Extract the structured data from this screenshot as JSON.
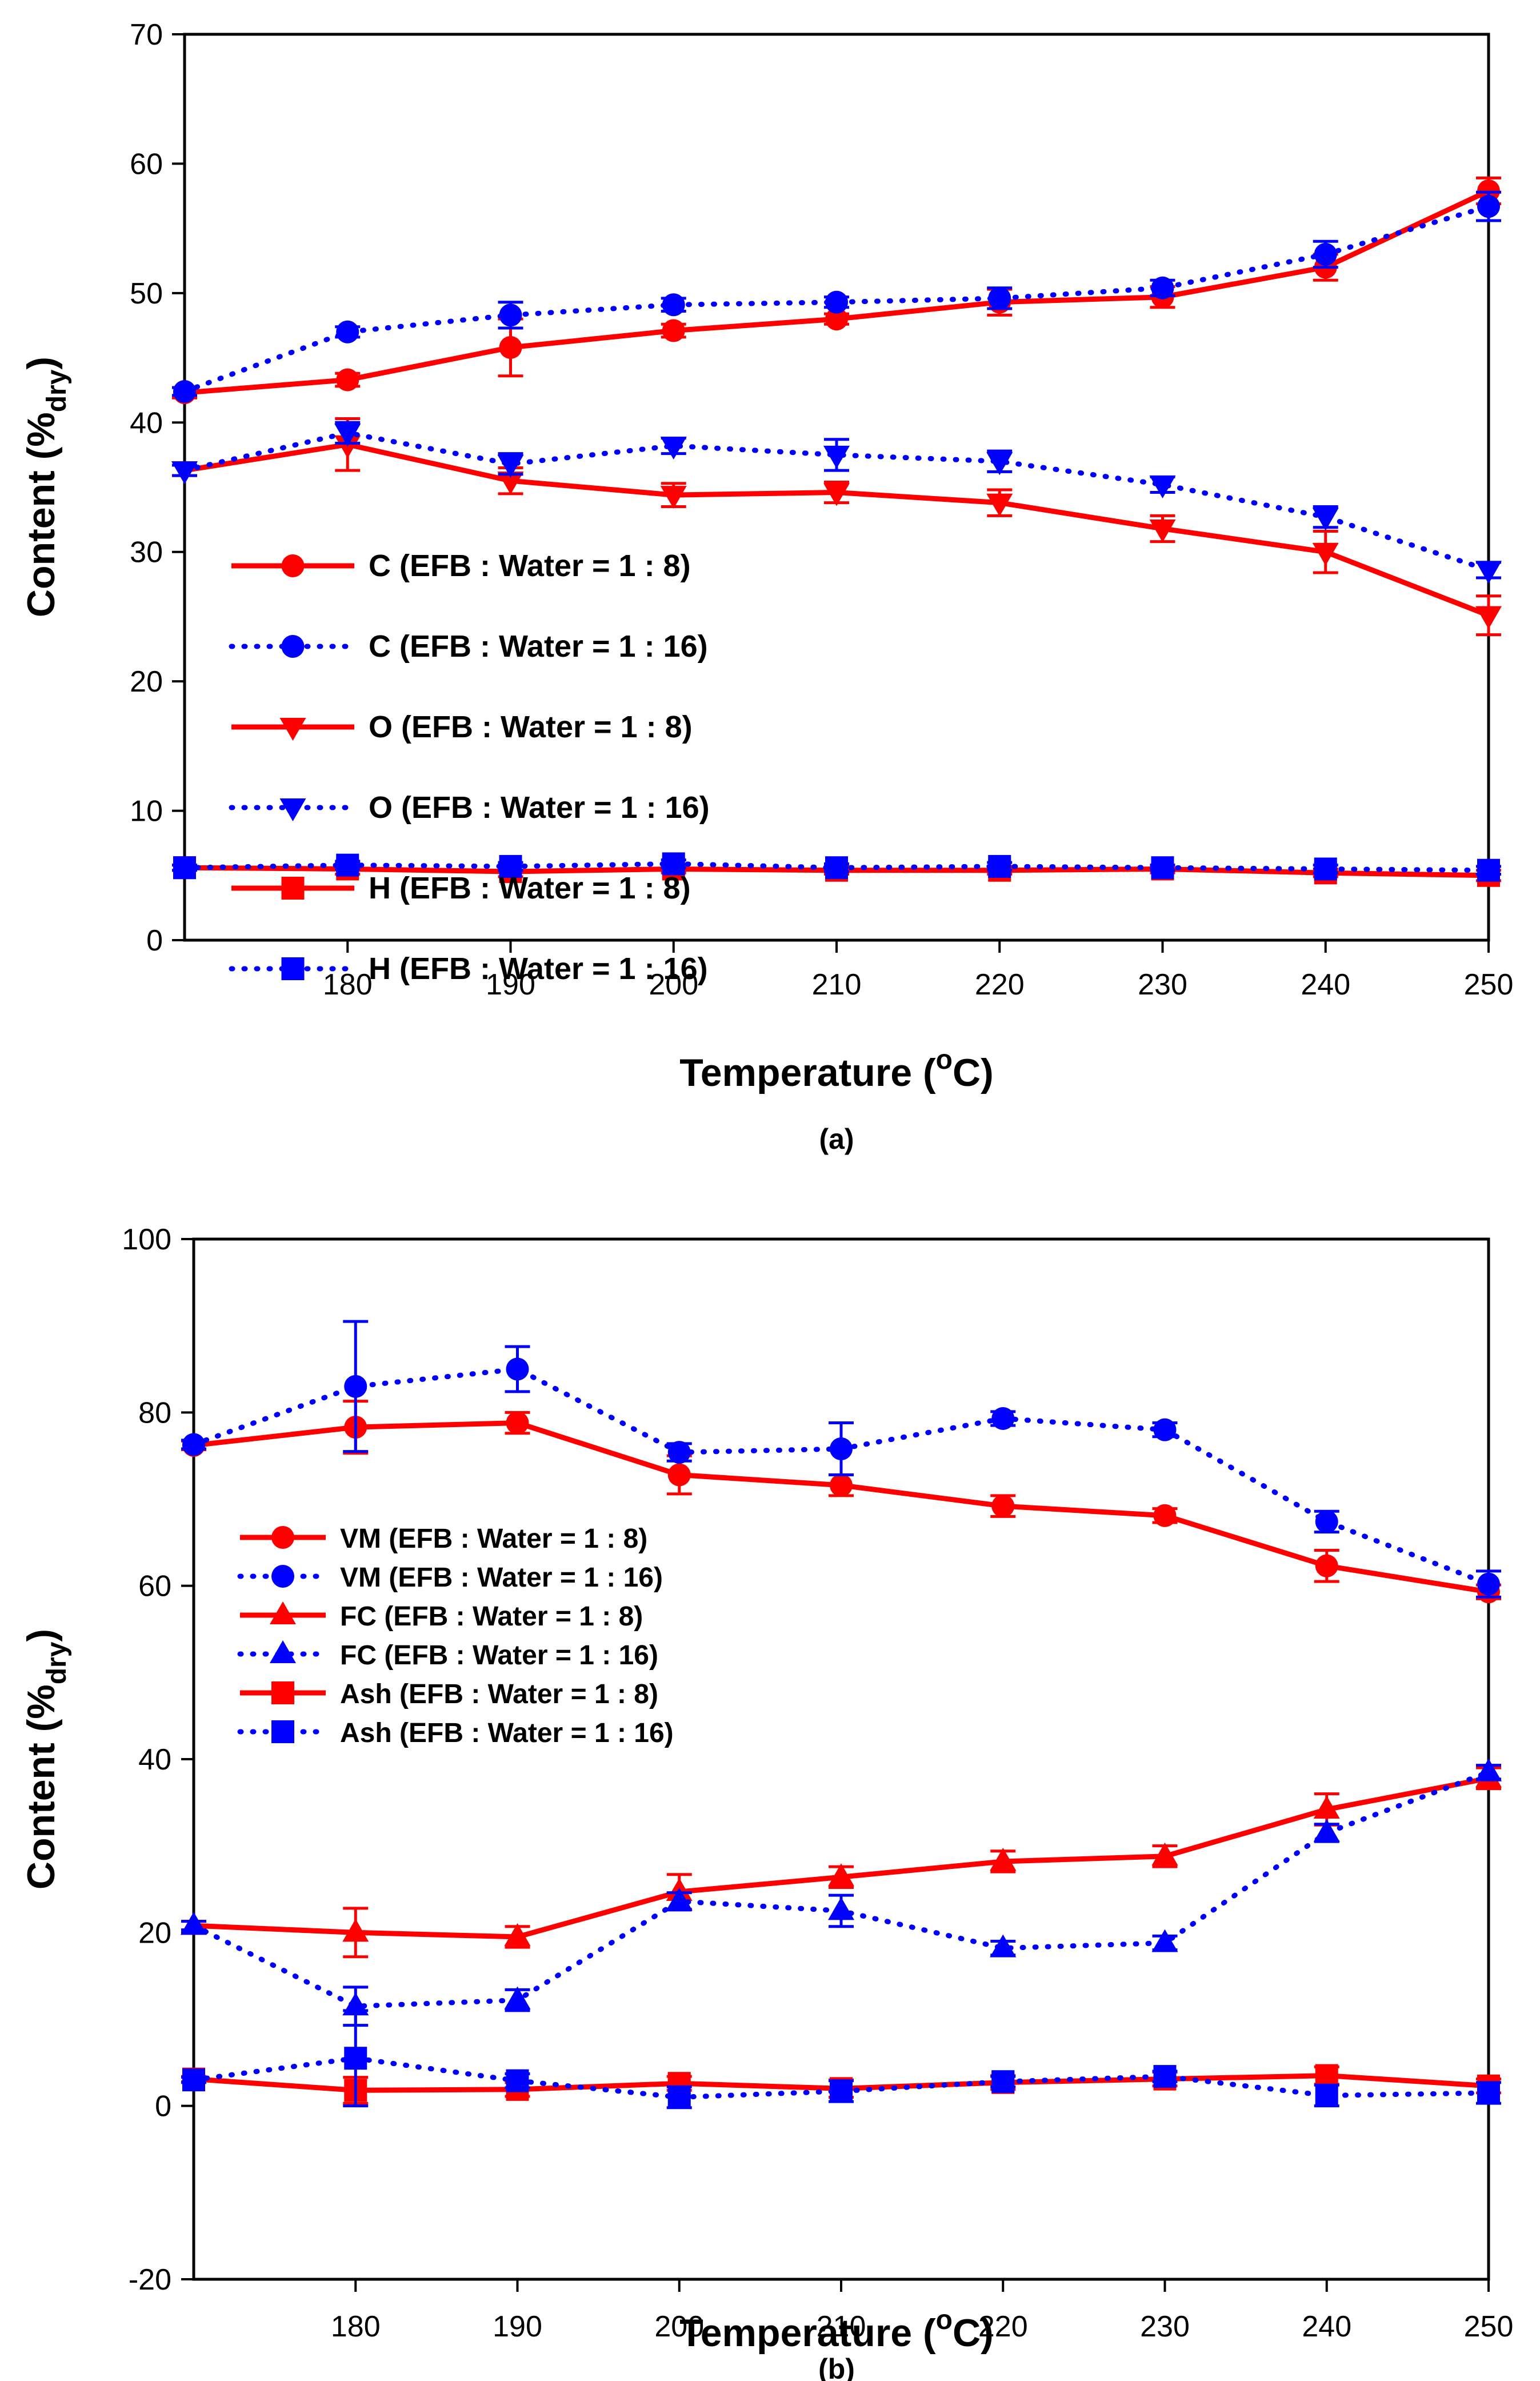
{
  "colors": {
    "red": "#ff0000",
    "blue": "#0000ff",
    "axis": "#000000"
  },
  "chart_data": [
    {
      "id": "a",
      "type": "line",
      "caption": "(a)",
      "xlabel": "Temperature (",
      "xlabel_sup": "o",
      "xlabel_end": "C)",
      "ylabel": "Content (%",
      "ylabel_sub": "dry",
      "ylabel_end": ")",
      "xlim": [
        170,
        250
      ],
      "ylim": [
        0,
        70
      ],
      "x_ticks": [
        180,
        190,
        200,
        210,
        220,
        230,
        240,
        250
      ],
      "y_ticks": [
        0,
        10,
        20,
        30,
        40,
        50,
        60,
        70
      ],
      "x": [
        170,
        180,
        190,
        200,
        210,
        220,
        230,
        240,
        250
      ],
      "series": [
        {
          "name": "C (EFB : Water = 1 : 8)",
          "color": "red",
          "style": "solid",
          "marker": "circle",
          "values": [
            42.3,
            43.3,
            45.8,
            47.1,
            48.0,
            49.3,
            49.7,
            52.0,
            57.9
          ],
          "errors": [
            0.4,
            0.5,
            2.2,
            0.5,
            0.4,
            1.0,
            0.8,
            1.0,
            1.0
          ]
        },
        {
          "name": "C (EFB : Water = 1 : 16)",
          "color": "blue",
          "style": "dotted",
          "marker": "circle",
          "values": [
            42.4,
            47.0,
            48.3,
            49.1,
            49.3,
            49.6,
            50.4,
            53.0,
            56.7
          ],
          "errors": [
            0.3,
            0.4,
            1.0,
            0.5,
            0.4,
            0.8,
            0.6,
            1.0,
            1.1
          ]
        },
        {
          "name": "O (EFB : Water = 1 : 8)",
          "color": "red",
          "style": "solid",
          "marker": "triangle-down",
          "values": [
            36.3,
            38.3,
            35.5,
            34.4,
            34.6,
            33.8,
            31.8,
            30.0,
            25.1
          ],
          "errors": [
            0.4,
            2.0,
            1.0,
            0.9,
            0.8,
            1.0,
            1.0,
            1.6,
            1.5
          ]
        },
        {
          "name": "O (EFB : Water = 1 : 16)",
          "color": "blue",
          "style": "dotted",
          "marker": "triangle-down",
          "values": [
            36.3,
            39.2,
            36.8,
            38.2,
            37.5,
            37.0,
            35.2,
            32.7,
            28.6
          ],
          "errors": [
            0.4,
            0.8,
            0.8,
            0.6,
            1.2,
            0.8,
            0.6,
            0.8,
            0.6
          ]
        },
        {
          "name": "H (EFB : Water = 1 : 8)",
          "color": "red",
          "style": "solid",
          "marker": "square",
          "values": [
            5.6,
            5.5,
            5.3,
            5.5,
            5.4,
            5.4,
            5.5,
            5.2,
            5.0
          ],
          "errors": [
            0.2,
            0.4,
            0.4,
            0.3,
            0.3,
            0.3,
            0.3,
            0.3,
            0.4
          ]
        },
        {
          "name": "H (EFB : Water = 1 : 16)",
          "color": "blue",
          "style": "dotted",
          "marker": "square",
          "values": [
            5.6,
            5.8,
            5.7,
            5.9,
            5.6,
            5.7,
            5.6,
            5.5,
            5.4
          ],
          "errors": [
            0.2,
            0.3,
            0.3,
            0.3,
            0.3,
            0.3,
            0.2,
            0.3,
            0.3
          ]
        }
      ]
    },
    {
      "id": "b",
      "type": "line",
      "caption": "(b)",
      "xlabel": "Temperature (",
      "xlabel_sup": "o",
      "xlabel_end": "C)",
      "ylabel": "Content (%",
      "ylabel_sub": "dry",
      "ylabel_end": ")",
      "xlim": [
        170,
        250
      ],
      "ylim": [
        -20,
        100
      ],
      "x_ticks": [
        180,
        190,
        200,
        210,
        220,
        230,
        240,
        250
      ],
      "y_ticks": [
        -20,
        0,
        20,
        40,
        60,
        80,
        100
      ],
      "x": [
        170,
        180,
        190,
        200,
        210,
        220,
        230,
        240,
        250
      ],
      "series": [
        {
          "name": "VM (EFB : Water = 1 : 8)",
          "color": "red",
          "style": "solid",
          "marker": "circle",
          "values": [
            76.2,
            78.3,
            78.8,
            72.8,
            71.6,
            69.2,
            68.1,
            62.3,
            59.3
          ],
          "errors": [
            0.5,
            3.0,
            1.2,
            2.2,
            1.2,
            1.2,
            0.8,
            1.8,
            0.8
          ]
        },
        {
          "name": "VM (EFB : Water = 1 : 16)",
          "color": "blue",
          "style": "dotted",
          "marker": "circle",
          "values": [
            76.3,
            83.0,
            85.0,
            75.4,
            75.8,
            79.3,
            78.0,
            67.4,
            60.2
          ],
          "errors": [
            0.5,
            7.5,
            2.6,
            1.0,
            3.0,
            0.8,
            0.8,
            1.2,
            1.5
          ]
        },
        {
          "name": "FC (EFB : Water = 1 : 8)",
          "color": "red",
          "style": "solid",
          "marker": "triangle-up",
          "values": [
            20.8,
            20.0,
            19.5,
            24.7,
            26.4,
            28.2,
            28.8,
            34.2,
            37.8
          ],
          "errors": [
            0.5,
            2.8,
            1.2,
            2.0,
            1.2,
            1.2,
            1.2,
            1.8,
            1.2
          ]
        },
        {
          "name": "FC (EFB : Water = 1 : 16)",
          "color": "blue",
          "style": "dotted",
          "marker": "triangle-up",
          "values": [
            20.8,
            11.5,
            12.2,
            23.6,
            22.5,
            18.2,
            18.8,
            31.5,
            38.5
          ],
          "errors": [
            0.5,
            2.2,
            1.2,
            1.0,
            1.8,
            0.8,
            0.8,
            1.0,
            0.8
          ]
        },
        {
          "name": "Ash (EFB : Water = 1 : 8)",
          "color": "red",
          "style": "solid",
          "marker": "square",
          "values": [
            3.1,
            1.8,
            1.9,
            2.6,
            2.0,
            2.7,
            3.1,
            3.5,
            2.3
          ],
          "errors": [
            0.3,
            1.5,
            0.8,
            0.8,
            1.0,
            0.8,
            0.8,
            1.0,
            0.8
          ]
        },
        {
          "name": "Ash (EFB : Water = 1 : 16)",
          "color": "blue",
          "style": "dotted",
          "marker": "square",
          "values": [
            3.0,
            5.5,
            2.9,
            1.0,
            1.7,
            2.8,
            3.4,
            1.2,
            1.5
          ],
          "errors": [
            0.3,
            5.5,
            0.8,
            1.2,
            1.2,
            0.6,
            0.6,
            1.2,
            1.2
          ]
        }
      ]
    }
  ]
}
